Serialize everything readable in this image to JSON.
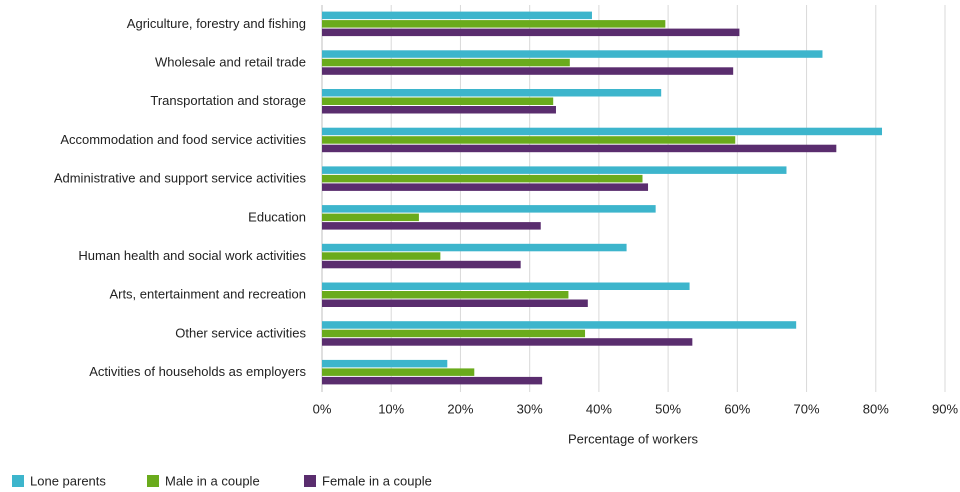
{
  "chart_data": {
    "type": "hbar",
    "xlabel": "Percentage of workers",
    "categories": [
      "Agriculture, forestry and fishing",
      "Wholesale and retail trade",
      "Transportation and storage",
      "Accommodation and food service activities",
      "Administrative and support service activities",
      "Education",
      "Human health and social work activities",
      "Arts, entertainment and recreation",
      "Other service activities",
      "Activities of households as employers"
    ],
    "series": [
      {
        "name": "Lone parents",
        "color": "#3db5cc",
        "values": [
          39.0,
          72.3,
          49.0,
          80.9,
          67.1,
          48.2,
          44.0,
          53.1,
          68.5,
          18.1
        ]
      },
      {
        "name": "Male in a couple",
        "color": "#6aab1c",
        "values": [
          49.6,
          35.8,
          33.4,
          59.7,
          46.3,
          14.0,
          17.1,
          35.6,
          38.0,
          22.0
        ]
      },
      {
        "name": "Female in a couple",
        "color": "#5a2d6e",
        "values": [
          60.3,
          59.4,
          33.8,
          74.3,
          47.1,
          31.6,
          28.7,
          38.4,
          53.5,
          31.8
        ]
      }
    ],
    "xlim": [
      0,
      90
    ],
    "xticks": [
      {
        "value": 0,
        "label": "0%"
      },
      {
        "value": 10,
        "label": "10%"
      },
      {
        "value": 20,
        "label": "20%"
      },
      {
        "value": 30,
        "label": "30%"
      },
      {
        "value": 40,
        "label": "40%"
      },
      {
        "value": 50,
        "label": "50%"
      },
      {
        "value": 60,
        "label": "60%"
      },
      {
        "value": 70,
        "label": "70%"
      },
      {
        "value": 80,
        "label": "80%"
      },
      {
        "value": 90,
        "label": "90%"
      }
    ],
    "grid": true
  }
}
